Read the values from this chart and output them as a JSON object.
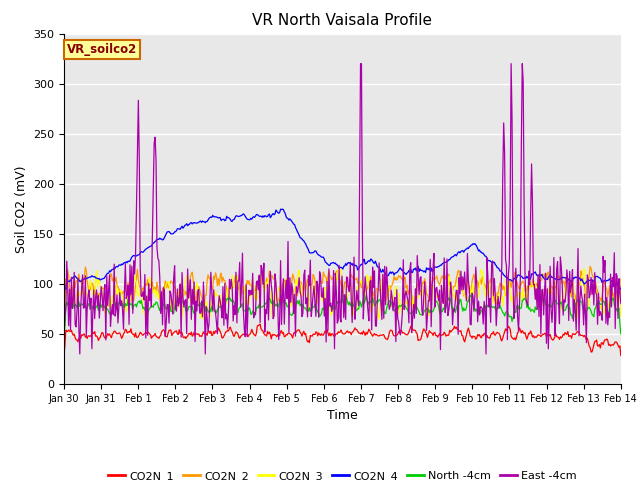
{
  "title": "VR North Vaisala Profile",
  "xlabel": "Time",
  "ylabel": "Soil CO2 (mV)",
  "annotation": "VR_soilco2",
  "ylim": [
    0,
    350
  ],
  "xlim": [
    0,
    15
  ],
  "xtick_labels": [
    "Jan 30",
    "Jan 31",
    "Feb 1",
    "Feb 2",
    "Feb 3",
    "Feb 4",
    "Feb 5",
    "Feb 6",
    "Feb 7",
    "Feb 8",
    "Feb 9",
    "Feb 10",
    "Feb 11",
    "Feb 12",
    "Feb 13",
    "Feb 14"
  ],
  "ytick_values": [
    0,
    50,
    100,
    150,
    200,
    250,
    300,
    350
  ],
  "colors": {
    "CO2N_1": "#ff0000",
    "CO2N_2": "#ff9900",
    "CO2N_3": "#ffff00",
    "CO2N_4": "#0000ff",
    "North_4cm": "#00cc00",
    "East_4cm": "#aa00aa"
  },
  "legend_labels": [
    "CO2N_1",
    "CO2N_2",
    "CO2N_3",
    "CO2N_4",
    "North -4cm",
    "East -4cm"
  ],
  "background_color": "#ffffff",
  "plot_bg_color": "#e8e8e8",
  "grid_color": "#ffffff",
  "annotation_bg": "#ffff99",
  "annotation_border": "#cc6600",
  "annotation_text_color": "#880000"
}
